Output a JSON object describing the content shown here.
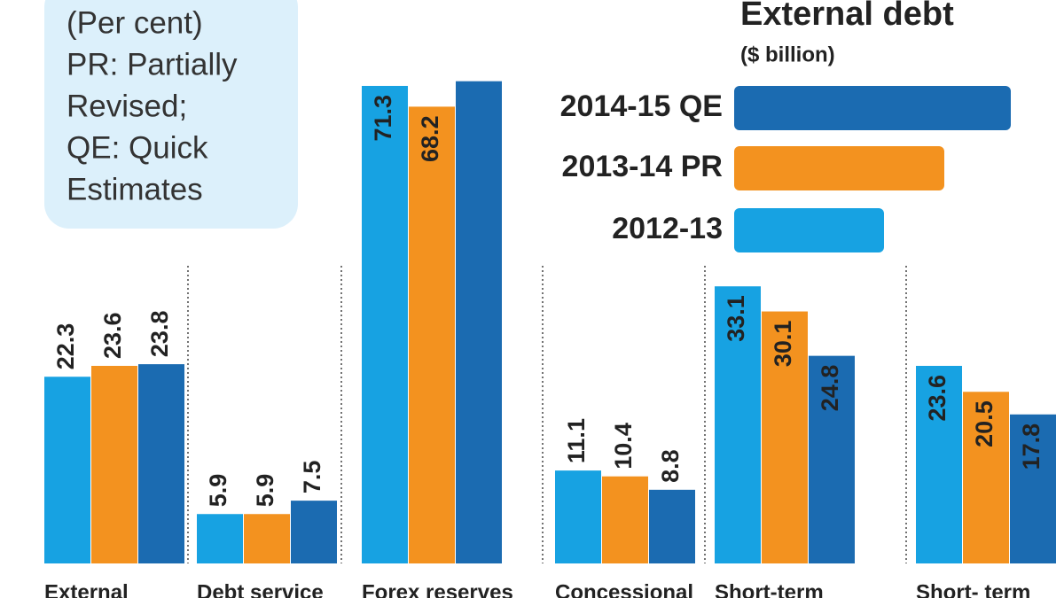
{
  "chart_data": {
    "type": "bar",
    "title": "External debt",
    "subtitle": "($ billion)",
    "note": [
      "(Per cent)",
      "PR: Partially",
      "Revised;",
      "QE: Quick",
      "Estimates"
    ],
    "categories": [
      "External",
      "Debt service",
      "Forex reserves",
      "Concessional",
      "Short-term",
      "Short- term"
    ],
    "ylims": [
      [
        0,
        60
      ],
      [
        0,
        60
      ],
      [
        0,
        75
      ],
      [
        0,
        60
      ],
      [
        0,
        60
      ],
      [
        0,
        60
      ]
    ],
    "series": [
      {
        "name": "2012-13",
        "color": "#17a2e2",
        "values": [
          22.3,
          5.9,
          71.3,
          11.1,
          33.1,
          23.6
        ]
      },
      {
        "name": "2013-14 PR",
        "color": "#f3921f",
        "values": [
          23.6,
          5.9,
          68.2,
          10.4,
          30.1,
          20.5
        ]
      },
      {
        "name": "2014-15 QE",
        "color": "#1b6bb1",
        "values": [
          23.8,
          7.5,
          72,
          8.8,
          24.8,
          17.8
        ],
        "value_labels": [
          "23.8",
          "7.5",
          null,
          "8.8",
          "24.8",
          "17.8"
        ]
      }
    ]
  }
}
